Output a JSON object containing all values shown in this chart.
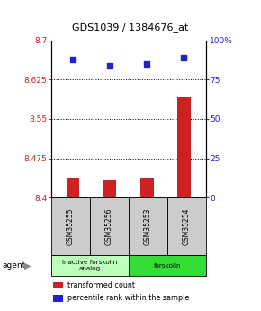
{
  "title": "GDS1039 / 1384676_at",
  "samples": [
    "GSM35255",
    "GSM35256",
    "GSM35253",
    "GSM35254"
  ],
  "bar_values": [
    8.438,
    8.432,
    8.438,
    8.592
  ],
  "percentile_values": [
    88,
    84,
    85,
    89
  ],
  "ylim_left": [
    8.4,
    8.7
  ],
  "ylim_right": [
    0,
    100
  ],
  "yticks_left": [
    8.4,
    8.475,
    8.55,
    8.625,
    8.7
  ],
  "yticks_right": [
    0,
    25,
    50,
    75,
    100
  ],
  "ytick_labels_left": [
    "8.4",
    "8.475",
    "8.55",
    "8.625",
    "8.7"
  ],
  "ytick_labels_right": [
    "0",
    "25",
    "50",
    "75",
    "100%"
  ],
  "bar_color": "#cc2222",
  "dot_color": "#2222cc",
  "sample_box_color": "#cccccc",
  "agent_label_groups": [
    {
      "label": "inactive forskolin\nanalog",
      "color": "#bbffbb",
      "span": [
        0,
        2
      ]
    },
    {
      "label": "forskolin",
      "color": "#33dd33",
      "span": [
        2,
        4
      ]
    }
  ],
  "agent_text": "agent",
  "legend_items": [
    {
      "color": "#cc2222",
      "label": "transformed count"
    },
    {
      "color": "#2222cc",
      "label": "percentile rank within the sample"
    }
  ],
  "bar_width": 0.35
}
